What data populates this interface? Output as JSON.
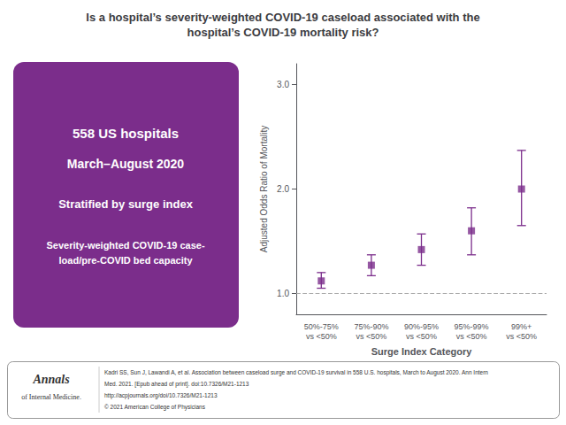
{
  "chart_data": {
    "type": "errorbar",
    "title": "Is a hospital’s severity-weighted COVID-19 caseload associated with the\nhospital’s COVID-19 mortality risk?",
    "categories": [
      "50%-75%\nvs <50%",
      "75%-90%\nvs <50%",
      "90%-95%\nvs <50%",
      "95%-99%\nvs <50%",
      "99%+\nvs <50%"
    ],
    "values": [
      1.12,
      1.27,
      1.42,
      1.6,
      2.0
    ],
    "ci_lower": [
      1.05,
      1.17,
      1.27,
      1.37,
      1.65
    ],
    "ci_upper": [
      1.2,
      1.37,
      1.57,
      1.82,
      2.37
    ],
    "color": "#7b2d8b",
    "marker": "square",
    "reference_line": {
      "y": 1.0,
      "color": "#aaaaaa",
      "line_style": "dashed"
    },
    "xlabel": "Surge Index Category",
    "ylabel": "Adjusted Odds Ratio of Mortality",
    "ylim": [
      0.8,
      3.2
    ],
    "yticks": [
      {
        "value": 1.0,
        "label": "1.0"
      },
      {
        "value": 2.0,
        "label": "2.0"
      },
      {
        "value": 3.0,
        "label": "3.0"
      }
    ],
    "grid": false,
    "annotations": {
      "panel": [
        "558 US hospitals",
        "March–August 2020",
        "Stratified by surge index",
        "Severity-weighted COVID-19 case-\nload/pre-COVID bed capacity"
      ],
      "logo": [
        "Annals",
        "of Internal Medicine."
      ],
      "citation": [
        "Kadri SS, Sun J, Lawandi A, et al. Association between caseload surge and COVID-19 survival in 558 U.S. hospitals, March to August 2020. Ann Intern",
        "Med. 2021. [Epub ahead of print]. doi:10.7326/M21-1213",
        "http://acpjournals.org/doi/10.7326/M21-1213",
        "© 2021 American College of Physicians"
      ]
    }
  }
}
